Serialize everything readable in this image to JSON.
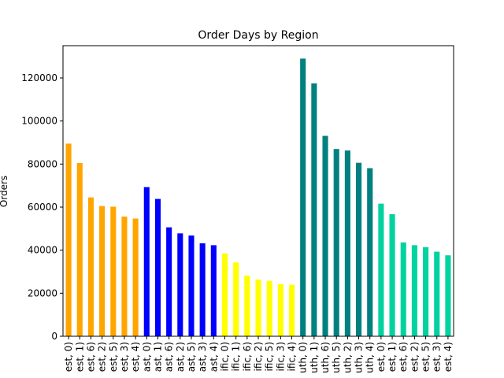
{
  "chart_data": {
    "type": "bar",
    "title": "Order Days by Region",
    "xlabel": "",
    "ylabel": "Orders",
    "ylim": [
      0,
      135000
    ],
    "yticks": [
      0,
      20000,
      40000,
      60000,
      80000,
      100000,
      120000
    ],
    "ytick_labels": [
      "0",
      "20000",
      "40000",
      "60000",
      "80000",
      "100000",
      "120000"
    ],
    "grid": false,
    "legend": "none",
    "tick_labels": [
      "est, 0)",
      "est, 1)",
      "est, 6)",
      "est, 2)",
      "est, 5)",
      "est, 3)",
      "est, 4)",
      "ast, 0)",
      "ast, 1)",
      "ast, 6)",
      "ast, 2)",
      "ast, 5)",
      "ast, 3)",
      "ast, 4)",
      "ific, 0)",
      "ific, 1)",
      "ific, 6)",
      "ific, 2)",
      "ific, 5)",
      "ific, 3)",
      "ific, 4)",
      "uth, 0)",
      "uth, 1)",
      "uth, 6)",
      "uth, 5)",
      "uth, 2)",
      "uth, 3)",
      "uth, 4)",
      "est, 0)",
      "est, 1)",
      "est, 6)",
      "est, 2)",
      "est, 5)",
      "est, 3)",
      "est, 4)"
    ],
    "values": [
      89500,
      80500,
      64500,
      60500,
      60200,
      55600,
      54700,
      69300,
      63800,
      50600,
      47800,
      46800,
      43200,
      42300,
      38500,
      34300,
      28200,
      26300,
      25700,
      24200,
      23900,
      129000,
      117500,
      93100,
      87000,
      86300,
      80600,
      78100,
      61600,
      56700,
      43600,
      42300,
      41400,
      39300,
      37600
    ],
    "colors": [
      "#ffa500",
      "#ffa500",
      "#ffa500",
      "#ffa500",
      "#ffa500",
      "#ffa500",
      "#ffa500",
      "#0000ff",
      "#0000ff",
      "#0000ff",
      "#0000ff",
      "#0000ff",
      "#0000ff",
      "#0000ff",
      "#ffff00",
      "#ffff00",
      "#ffff00",
      "#ffff00",
      "#ffff00",
      "#ffff00",
      "#ffff00",
      "#008080",
      "#008080",
      "#008080",
      "#008080",
      "#008080",
      "#008080",
      "#008080",
      "#00d3a0",
      "#00d3a0",
      "#00d3a0",
      "#00d3a0",
      "#00d3a0",
      "#00d3a0",
      "#00d3a0"
    ]
  }
}
